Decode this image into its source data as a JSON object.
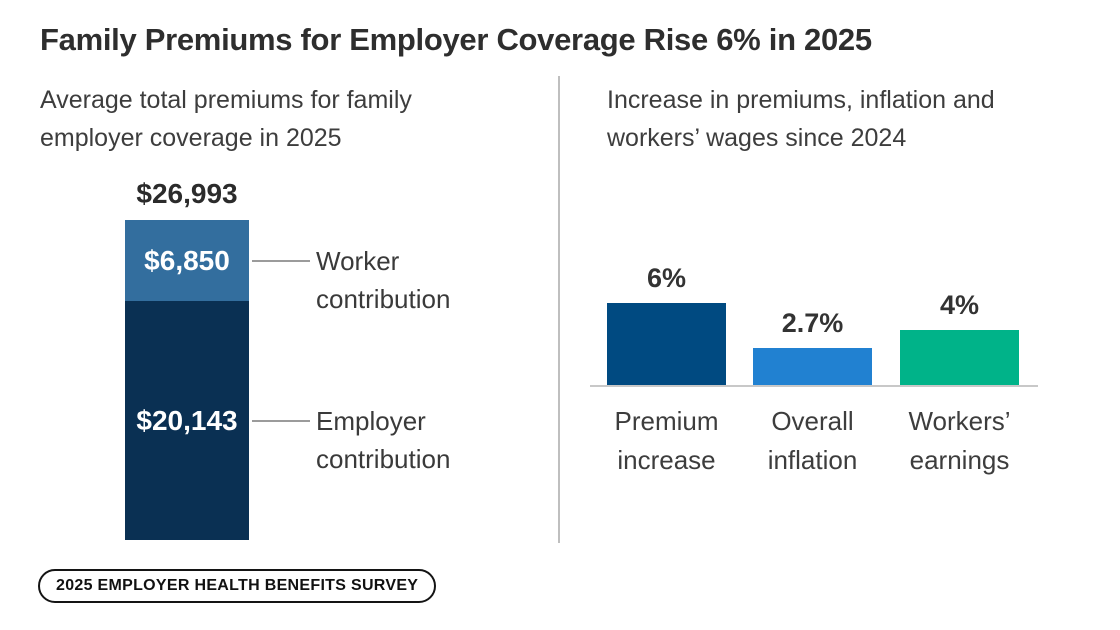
{
  "header": {
    "title": "Family Premiums for Employer Coverage Rise 6% in 2025"
  },
  "badge": {
    "label": "2025 EMPLOYER HEALTH BENEFITS SURVEY"
  },
  "chart_data": [
    {
      "type": "bar",
      "subtype": "stacked-single-column",
      "title": "Average total premiums for family employer coverage in 2025",
      "total": 26993,
      "total_label": "$26,993",
      "segments": [
        {
          "name": "Worker contribution",
          "value": 6850,
          "label": "$6,850",
          "color": "#336E9E"
        },
        {
          "name": "Employer contribution",
          "value": 20143,
          "label": "$20,143",
          "color": "#0A3053"
        }
      ],
      "grid": false
    },
    {
      "type": "bar",
      "title": "Increase in premiums, inflation and workers’ wages since 2024",
      "categories": [
        "Premium increase",
        "Overall inflation",
        "Workers’ earnings"
      ],
      "values": [
        6,
        2.7,
        4
      ],
      "value_labels": [
        "6%",
        "2.7%",
        "4%"
      ],
      "colors": [
        "#004A81",
        "#2181D1",
        "#00B389"
      ],
      "xlabel": "",
      "ylabel": "",
      "ylim": [
        0,
        6.5
      ],
      "grid": false,
      "axis_color": "#c8c8c8"
    }
  ]
}
